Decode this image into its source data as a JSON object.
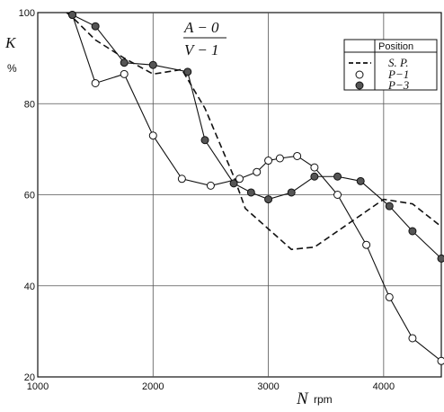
{
  "chart_data": {
    "type": "line",
    "title": "",
    "xlabel": "N",
    "xunit": "rpm",
    "ylabel": "K",
    "yunit": "%",
    "xlim": [
      1000,
      4500
    ],
    "ylim": [
      20,
      100
    ],
    "x_ticks": [
      1000,
      2000,
      3000,
      4000
    ],
    "y_ticks": [
      20,
      40,
      60,
      80,
      100
    ],
    "grid": true,
    "annotations": [
      "A − 0",
      "V − 1"
    ],
    "legend": {
      "header": "Position",
      "placement": "top-right",
      "entries": [
        "S. P.",
        "P−1",
        "P−3"
      ]
    },
    "series": [
      {
        "name": "S. P.",
        "style": "dashed",
        "x": [
          1250,
          1300,
          1500,
          1750,
          2000,
          2250,
          2450,
          2700,
          2800,
          3000,
          3200,
          3400,
          3800,
          4000,
          4250,
          4500
        ],
        "y": [
          100,
          99,
          94,
          90,
          86.5,
          87.5,
          79,
          64,
          57,
          52.5,
          48,
          48.5,
          55.5,
          59,
          58,
          53
        ]
      },
      {
        "name": "P−1",
        "marker": "open-circle",
        "x": [
          1250,
          1300,
          1500,
          1750,
          2000,
          2250,
          2500,
          2750,
          2900,
          3000,
          3100,
          3250,
          3400,
          3600,
          3850,
          4050,
          4250,
          4500
        ],
        "y": [
          100,
          99.5,
          84.5,
          86.5,
          73,
          63.5,
          62,
          63.5,
          65,
          67.5,
          68,
          68.5,
          66,
          60,
          49,
          37.5,
          28.5,
          23.5
        ]
      },
      {
        "name": "P−3",
        "marker": "filled-circle",
        "x": [
          1250,
          1300,
          1500,
          1750,
          2000,
          2300,
          2450,
          2700,
          2850,
          3000,
          3200,
          3400,
          3600,
          3800,
          4050,
          4250,
          4500
        ],
        "y": [
          100,
          99.5,
          97,
          89,
          88.5,
          87,
          72,
          62.5,
          60.5,
          59,
          60.5,
          64,
          64,
          63,
          57.5,
          52,
          46
        ]
      }
    ]
  }
}
